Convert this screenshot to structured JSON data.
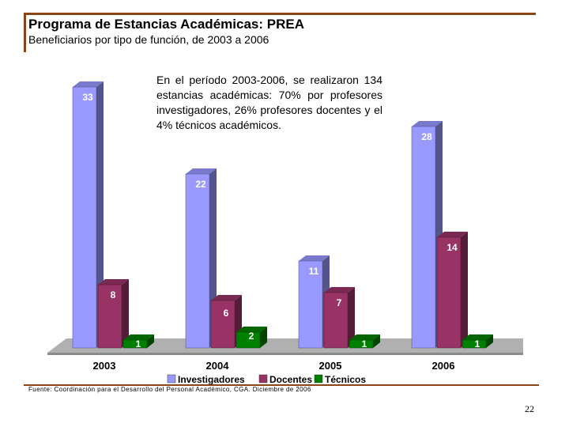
{
  "header": {
    "title": "Programa de Estancias Académicas: PREA",
    "subtitle": "Beneficiarios por tipo de función, de 2003 a 2006"
  },
  "note": "En el período 2003-2006, se realizaron 134 estancias académicas: 70% por profesores investigadores, 26% profesores docentes y el 4% técnicos académicos.",
  "source": "Fuente: Coordinación para el Desarrollo del Personal Académico, CGA. Diciembre de 2006",
  "page_number": "22",
  "chart_data": {
    "type": "bar",
    "categories": [
      "2003",
      "2004",
      "2005",
      "2006"
    ],
    "series": [
      {
        "name": "Investigadores",
        "values": [
          33,
          22,
          11,
          28
        ],
        "color": "#9999ff"
      },
      {
        "name": "Docentes",
        "values": [
          8,
          6,
          7,
          14
        ],
        "color": "#993366"
      },
      {
        "name": "Técnicos",
        "values": [
          1,
          2,
          1,
          1
        ],
        "color": "#008000"
      }
    ],
    "ylim": [
      0,
      35
    ],
    "grid": false,
    "legend_position": "bottom",
    "three_d": true
  }
}
